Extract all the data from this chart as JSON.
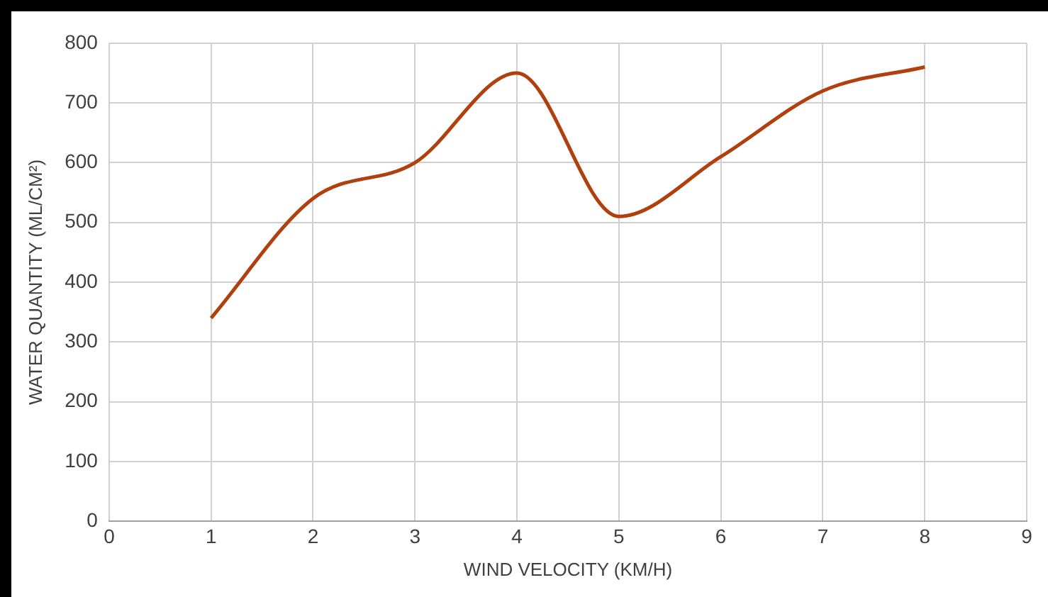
{
  "chart_data": {
    "type": "line",
    "xlabel": "WIND VELOCITY (KM/H)",
    "ylabel": "WATER QUANTITY (ML/CM²)",
    "x": [
      1,
      2,
      3,
      4,
      5,
      6,
      7,
      8
    ],
    "series": [
      {
        "color": "#b0410e",
        "values": [
          340,
          540,
          600,
          750,
          510,
          610,
          720,
          760
        ]
      }
    ],
    "xlim": [
      0,
      9
    ],
    "xticks": [
      0,
      1,
      2,
      3,
      4,
      5,
      6,
      7,
      8,
      9
    ],
    "ylim": [
      0,
      800
    ],
    "yticks": [
      0,
      100,
      200,
      300,
      400,
      500,
      600,
      700,
      800
    ],
    "grid": true,
    "legend": false,
    "marker": "none",
    "line_style": "solid"
  }
}
